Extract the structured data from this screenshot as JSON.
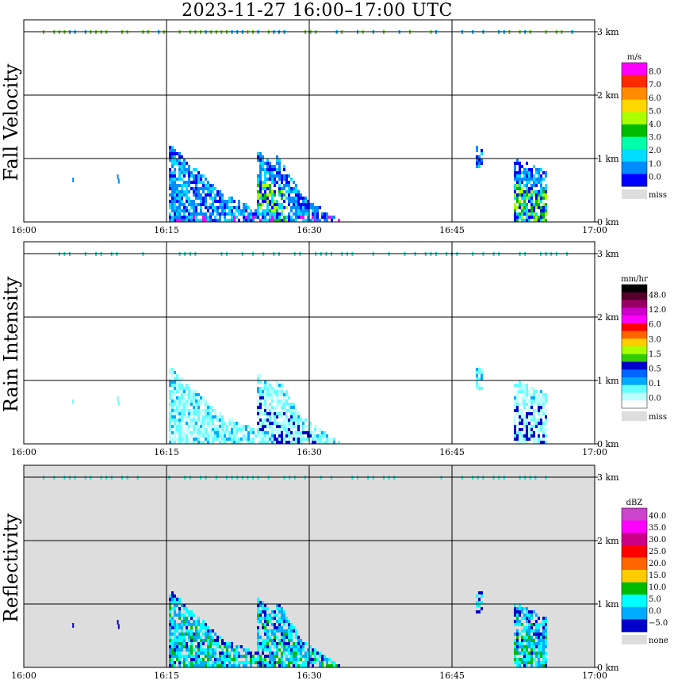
{
  "title": "2023-11-27   16:00–17:00 UTC",
  "x_ticks": [
    "16:00",
    "16:15",
    "16:30",
    "16:45",
    "17:00"
  ],
  "y_ticks": [
    "0 km",
    "1 km",
    "2 km",
    "3 km"
  ],
  "chart_data": [
    {
      "type": "heatmap",
      "name": "Fall Velocity",
      "ylabel": "Fall Velocity",
      "colorbar_unit": "m/s",
      "colorbar_labels": [
        "8.0",
        "7.0",
        "6.0",
        "5.0",
        "4.0",
        "3.0",
        "2.0",
        "1.0",
        "0.0"
      ],
      "colorbar_colors": [
        "#ff00ff",
        "#ff2a00",
        "#ff8c00",
        "#ffd700",
        "#aaff00",
        "#00bb00",
        "#00ffaa",
        "#00ddff",
        "#008cff",
        "#0000ff"
      ],
      "missing_label": "miss",
      "xlim": [
        "16:00",
        "17:00"
      ],
      "ylim_km": [
        0,
        3.1
      ],
      "background": "#ffffff"
    },
    {
      "type": "heatmap",
      "name": "Rain Intensity",
      "ylabel": "Rain Intensity",
      "colorbar_unit": "mm/hr",
      "colorbar_labels": [
        "48.0",
        "12.0",
        "6.0",
        "3.0",
        "1.5",
        "0.5",
        "0.1",
        "0.0"
      ],
      "colorbar_colors": [
        "#000000",
        "#55002a",
        "#990066",
        "#cc00cc",
        "#ff00ff",
        "#ff0000",
        "#ff6600",
        "#ffcc00",
        "#aaff00",
        "#33cc00",
        "#0000cc",
        "#0066ff",
        "#00aaff",
        "#66ffff",
        "#bbffff",
        "#ffffff"
      ],
      "missing_label": "miss",
      "xlim": [
        "16:00",
        "17:00"
      ],
      "ylim_km": [
        0,
        3.1
      ],
      "background": "#ffffff"
    },
    {
      "type": "heatmap",
      "name": "Reflectivity",
      "ylabel": "Reflectivity",
      "colorbar_unit": "dBZ",
      "colorbar_labels": [
        "40.0",
        "35.0",
        "30.0",
        "25.0",
        "20.0",
        "15.0",
        "10.0",
        "5.0",
        "0.0",
        "−5.0"
      ],
      "colorbar_colors": [
        "#cc44cc",
        "#ff00ff",
        "#cc0088",
        "#ff0000",
        "#ff6600",
        "#ffcc00",
        "#00bb00",
        "#00ffff",
        "#00aaff",
        "#0000cc"
      ],
      "missing_label": "none",
      "xlim": [
        "16:00",
        "17:00"
      ],
      "ylim_km": [
        0,
        3.1
      ],
      "background": "#dddddd"
    }
  ]
}
